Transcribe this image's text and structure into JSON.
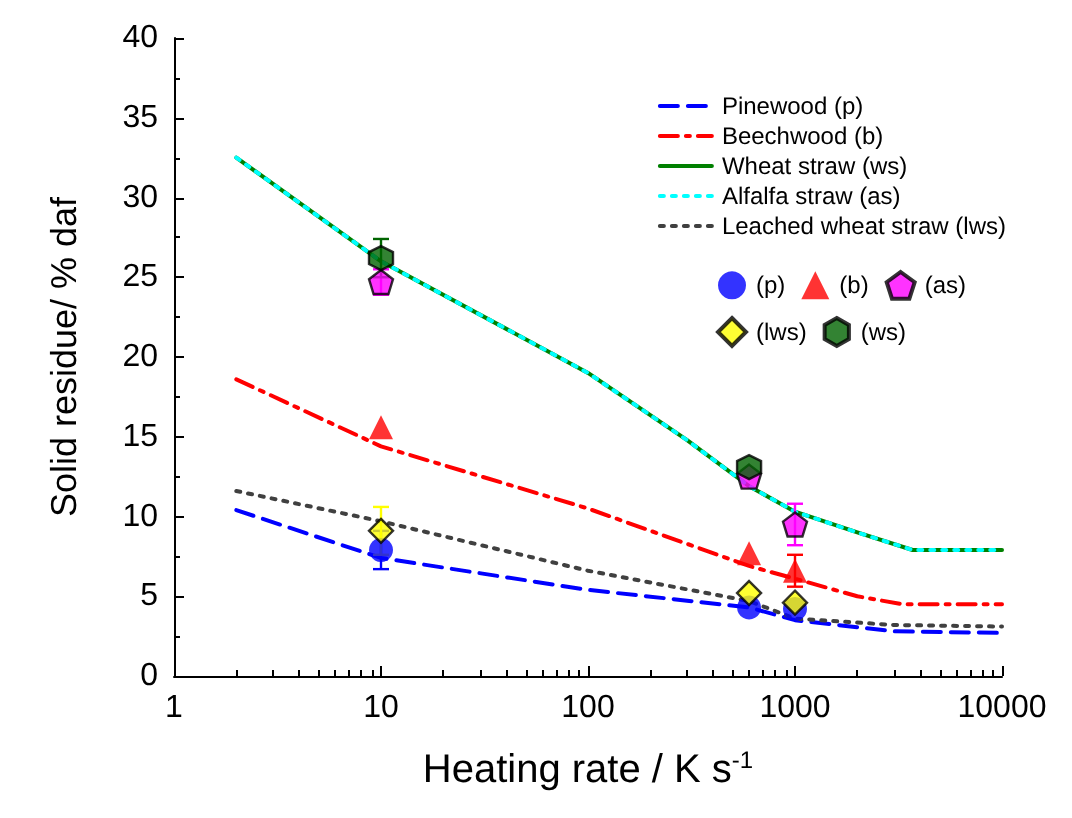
{
  "chart_data": {
    "type": "line",
    "xlabel": "Heating rate / K s$^{-1}$",
    "ylabel": "Solid residue/ % daf",
    "log": "x",
    "xlim": [
      1,
      10000
    ],
    "xticks": [
      1,
      10,
      100,
      1000,
      10000
    ],
    "ylim": [
      0,
      40
    ],
    "yticks": [
      0,
      5,
      10,
      15,
      20,
      25,
      30,
      35,
      40
    ],
    "grid": false,
    "legend": "top right",
    "marker": "none",
    "series": [
      {
        "name": "Pinewood (p)",
        "color": "#0000ff",
        "line_style": "dashed",
        "x": [
          2,
          10,
          100,
          600,
          1000,
          3000,
          10000
        ],
        "values": [
          10.4,
          7.4,
          5.4,
          4.3,
          3.5,
          2.8,
          2.7
        ]
      },
      {
        "name": "Beechwood (b)",
        "color": "#ff0000",
        "line_style": "dashdot",
        "x": [
          2,
          10,
          100,
          600,
          1000,
          2000,
          3300,
          10000
        ],
        "values": [
          18.6,
          14.4,
          10.5,
          6.9,
          6.1,
          5.0,
          4.5,
          4.5
        ]
      },
      {
        "name": "Wheat straw (ws)",
        "color": "#008000",
        "line_style": "solid",
        "x": [
          2,
          10,
          100,
          300,
          600,
          1000,
          2000,
          3700,
          10000
        ],
        "values": [
          32.5,
          26,
          19,
          14.8,
          11.9,
          10.3,
          9,
          7.9,
          7.9
        ]
      },
      {
        "name": "Alfalfa straw (as)",
        "color": "#00ffff",
        "line_style": "dotted",
        "x": [
          2,
          10,
          100,
          300,
          600,
          1000,
          2000,
          3700,
          10000
        ],
        "values": [
          32.5,
          26,
          19,
          14.8,
          11.9,
          10.3,
          9,
          7.9,
          7.9
        ]
      },
      {
        "name": "Leached wheat straw (lws)",
        "color": "#404040",
        "line_style": "dotted",
        "x": [
          2,
          10,
          100,
          600,
          1000,
          3000,
          10000
        ],
        "values": [
          11.6,
          9.7,
          6.6,
          4.7,
          3.6,
          3.2,
          3.1
        ]
      },
      {
        "name": "(p)",
        "type": "scatter",
        "marker": "circle",
        "color": "#0000ff",
        "x": [
          10,
          600,
          1000
        ],
        "values": [
          7.9,
          4.3,
          4.2
        ],
        "errors": [
          1.2,
          null,
          null
        ]
      },
      {
        "name": "(b)",
        "type": "scatter",
        "marker": "triangle",
        "color": "#ff0000",
        "x": [
          10,
          600,
          1000
        ],
        "values": [
          15.6,
          7.7,
          6.6
        ],
        "errors": [
          null,
          null,
          1
        ]
      },
      {
        "name": "(as)",
        "type": "scatter",
        "color": "#ff00ff",
        "x": [
          10,
          600,
          1000
        ],
        "values": [
          24.7,
          12.5,
          9.5
        ],
        "errors": [
          0.8,
          null,
          1.3
        ]
      },
      {
        "name": "(lws)",
        "type": "scatter",
        "marker": "diamond",
        "color": "#ffff00",
        "x": [
          10,
          600,
          1000
        ],
        "values": [
          9.1,
          5.2,
          4.6
        ],
        "errors": [
          1.5,
          null,
          null
        ]
      },
      {
        "name": "(ws)",
        "type": "scatter",
        "color": "#006400",
        "x": [
          10,
          600
        ],
        "values": [
          26.2,
          13.1
        ],
        "errors": [
          1.2,
          null
        ]
      }
    ]
  }
}
